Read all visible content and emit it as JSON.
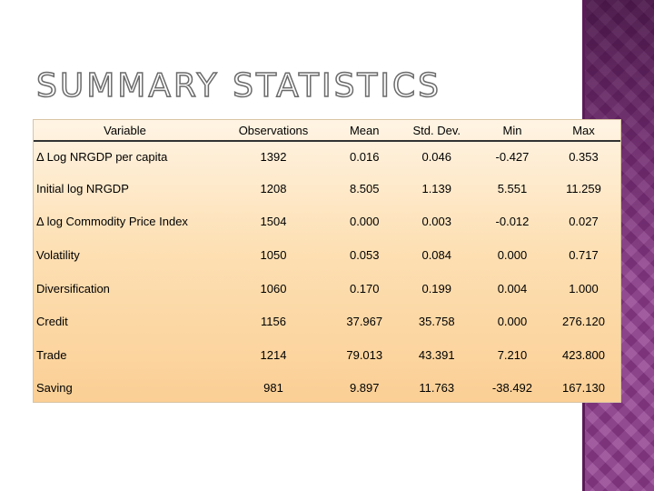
{
  "slide": {
    "title": "SUMMARY STATISTICS"
  },
  "table": {
    "headers": [
      "Variable",
      "Observations",
      "Mean",
      "Std. Dev.",
      "Min",
      "Max"
    ],
    "rows": [
      [
        "Δ Log NRGDP per capita",
        "1392",
        "0.016",
        "0.046",
        "-0.427",
        "0.353"
      ],
      [
        "Initial log NRGDP",
        "1208",
        "8.505",
        "1.139",
        "5.551",
        "11.259"
      ],
      [
        "Δ log Commodity Price Index",
        "1504",
        "0.000",
        "0.003",
        "-0.012",
        "0.027"
      ],
      [
        "Volatility",
        "1050",
        "0.053",
        "0.084",
        "0.000",
        "0.717"
      ],
      [
        "Diversification",
        "1060",
        "0.170",
        "0.199",
        "0.004",
        "1.000"
      ],
      [
        "Credit",
        "1156",
        "37.967",
        "35.758",
        "0.000",
        "276.120"
      ],
      [
        "Trade",
        "1214",
        "79.013",
        "43.391",
        "7.210",
        "423.800"
      ],
      [
        "Saving",
        "981",
        "9.897",
        "11.763",
        "-38.492",
        "167.130"
      ]
    ]
  },
  "colors": {
    "accent_band": "#8e3a8c",
    "table_fill_top": "#fff4e4",
    "table_fill_bottom": "#fbcf95"
  }
}
